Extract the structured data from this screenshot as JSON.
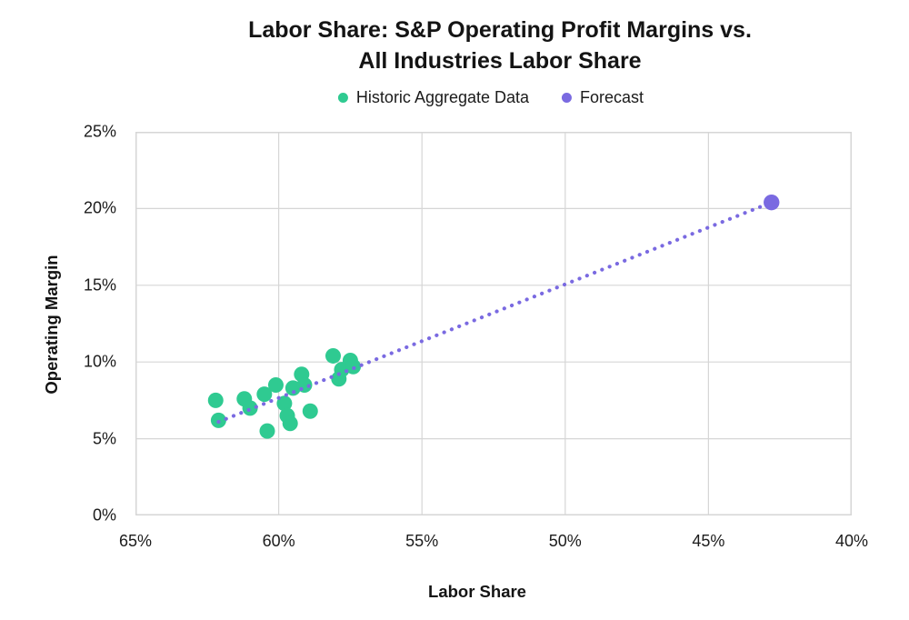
{
  "page": {
    "background": "#FFFFFF",
    "text_color": "#1B1B1B"
  },
  "chart_data": {
    "type": "scatter",
    "title_line1": "Labor Share: S&P Operating Profit Margins vs.",
    "title_line2": "All Industries Labor Share",
    "xlabel": "Labor Share",
    "ylabel": "Operating Margin",
    "legend_position": "top",
    "grid": true,
    "gridline_color": "#D6D6D6",
    "x_axis": {
      "label": "Labor Share",
      "left_value": 65,
      "right_value": 40,
      "reversed": true,
      "unit": "%",
      "ticks": [
        "65%",
        "60%",
        "55%",
        "50%",
        "45%",
        "40%"
      ]
    },
    "y_axis": {
      "label": "Operating Margin",
      "min": 0,
      "max": 25,
      "unit": "%",
      "ticks": [
        "25%",
        "20%",
        "15%",
        "10%",
        "5%",
        "0%"
      ]
    },
    "series": [
      {
        "name": "Historic Aggregate Data",
        "color": "#2FCA91",
        "marker": "circle",
        "marker_radius": 8.5,
        "points": [
          {
            "x": 62.2,
            "y": 7.5
          },
          {
            "x": 62.1,
            "y": 6.2
          },
          {
            "x": 61.2,
            "y": 7.6
          },
          {
            "x": 61.0,
            "y": 7.0
          },
          {
            "x": 60.5,
            "y": 7.9
          },
          {
            "x": 60.4,
            "y": 5.5
          },
          {
            "x": 60.1,
            "y": 8.5
          },
          {
            "x": 59.8,
            "y": 7.3
          },
          {
            "x": 59.7,
            "y": 6.5
          },
          {
            "x": 59.6,
            "y": 6.0
          },
          {
            "x": 59.5,
            "y": 8.3
          },
          {
            "x": 59.2,
            "y": 9.2
          },
          {
            "x": 59.1,
            "y": 8.5
          },
          {
            "x": 58.9,
            "y": 6.8
          },
          {
            "x": 58.1,
            "y": 10.4
          },
          {
            "x": 57.8,
            "y": 9.5
          },
          {
            "x": 57.9,
            "y": 8.9
          },
          {
            "x": 57.5,
            "y": 10.1
          },
          {
            "x": 57.4,
            "y": 9.7
          }
        ]
      },
      {
        "name": "Forecast",
        "color": "#7A6AE1",
        "marker": "circle",
        "marker_radius": 8.7,
        "points": [
          {
            "x": 42.8,
            "y": 20.4
          }
        ]
      }
    ],
    "trendline": {
      "color": "#7A6AE1",
      "style": "dotted",
      "from": {
        "x": 62.1,
        "y": 6.1
      },
      "to": {
        "x": 42.8,
        "y": 20.4
      }
    }
  }
}
